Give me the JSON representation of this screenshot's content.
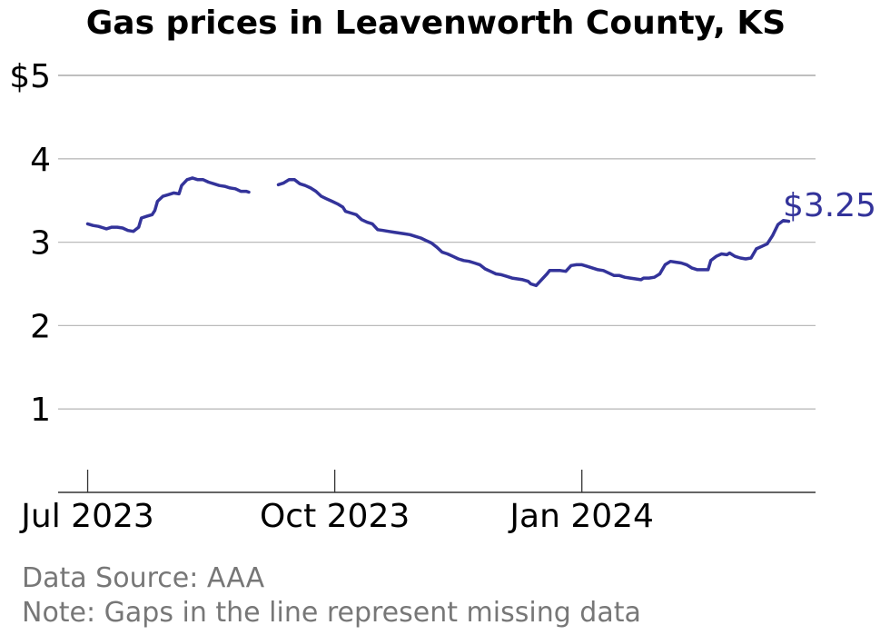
{
  "chart_data": {
    "type": "line",
    "title": "Gas prices in Leavenworth County, KS",
    "y_tick_labels": [
      "$5",
      "4",
      "3",
      "2",
      "1"
    ],
    "y_ticks": [
      5,
      4,
      3,
      2,
      1
    ],
    "ylim": [
      0,
      5
    ],
    "x_ticks": [
      {
        "label": "Jul 2023",
        "date": "2023-07-01"
      },
      {
        "label": "Oct 2023",
        "date": "2023-10-01"
      },
      {
        "label": "Jan 2024",
        "date": "2024-01-01"
      }
    ],
    "xlim": [
      "2023-06-20",
      "2024-03-28"
    ],
    "grid": true,
    "line_color": "#33339a",
    "end_label": "$3.25",
    "source": "Data Source: AAA",
    "note": "Note: Gaps in the line represent missing data",
    "series": [
      {
        "segments": [
          [
            [
              "2023-07-01",
              3.22
            ],
            [
              "2023-07-03",
              3.2
            ],
            [
              "2023-07-05",
              3.19
            ],
            [
              "2023-07-07",
              3.17
            ],
            [
              "2023-07-08",
              3.16
            ],
            [
              "2023-07-10",
              3.18
            ],
            [
              "2023-07-12",
              3.18
            ],
            [
              "2023-07-14",
              3.17
            ],
            [
              "2023-07-16",
              3.14
            ],
            [
              "2023-07-18",
              3.13
            ],
            [
              "2023-07-20",
              3.18
            ],
            [
              "2023-07-21",
              3.29
            ],
            [
              "2023-07-23",
              3.31
            ],
            [
              "2023-07-25",
              3.33
            ],
            [
              "2023-07-26",
              3.38
            ],
            [
              "2023-07-27",
              3.49
            ],
            [
              "2023-07-29",
              3.55
            ],
            [
              "2023-07-31",
              3.57
            ],
            [
              "2023-08-02",
              3.59
            ],
            [
              "2023-08-04",
              3.58
            ],
            [
              "2023-08-05",
              3.68
            ],
            [
              "2023-08-07",
              3.75
            ],
            [
              "2023-08-09",
              3.77
            ],
            [
              "2023-08-11",
              3.75
            ],
            [
              "2023-08-13",
              3.75
            ],
            [
              "2023-08-15",
              3.72
            ],
            [
              "2023-08-17",
              3.7
            ],
            [
              "2023-08-19",
              3.68
            ],
            [
              "2023-08-21",
              3.67
            ],
            [
              "2023-08-23",
              3.65
            ],
            [
              "2023-08-25",
              3.64
            ],
            [
              "2023-08-27",
              3.61
            ],
            [
              "2023-08-29",
              3.61
            ],
            [
              "2023-08-30",
              3.6
            ]
          ],
          [
            [
              "2023-09-10",
              3.69
            ],
            [
              "2023-09-12",
              3.71
            ],
            [
              "2023-09-14",
              3.75
            ],
            [
              "2023-09-16",
              3.75
            ],
            [
              "2023-09-18",
              3.7
            ],
            [
              "2023-09-20",
              3.68
            ],
            [
              "2023-09-22",
              3.65
            ],
            [
              "2023-09-24",
              3.61
            ],
            [
              "2023-09-26",
              3.55
            ],
            [
              "2023-09-28",
              3.52
            ],
            [
              "2023-09-30",
              3.49
            ],
            [
              "2023-10-02",
              3.46
            ],
            [
              "2023-10-04",
              3.42
            ],
            [
              "2023-10-05",
              3.37
            ],
            [
              "2023-10-07",
              3.35
            ],
            [
              "2023-10-09",
              3.33
            ],
            [
              "2023-10-11",
              3.27
            ],
            [
              "2023-10-13",
              3.24
            ],
            [
              "2023-10-15",
              3.22
            ],
            [
              "2023-10-17",
              3.15
            ],
            [
              "2023-10-19",
              3.14
            ],
            [
              "2023-10-21",
              3.13
            ],
            [
              "2023-10-23",
              3.12
            ],
            [
              "2023-10-25",
              3.11
            ],
            [
              "2023-10-27",
              3.1
            ],
            [
              "2023-10-29",
              3.09
            ],
            [
              "2023-10-31",
              3.07
            ],
            [
              "2023-11-02",
              3.05
            ],
            [
              "2023-11-04",
              3.02
            ],
            [
              "2023-11-06",
              2.99
            ],
            [
              "2023-11-08",
              2.94
            ],
            [
              "2023-11-10",
              2.88
            ],
            [
              "2023-11-12",
              2.86
            ],
            [
              "2023-11-14",
              2.83
            ],
            [
              "2023-11-16",
              2.8
            ],
            [
              "2023-11-18",
              2.78
            ],
            [
              "2023-11-20",
              2.77
            ],
            [
              "2023-11-22",
              2.75
            ],
            [
              "2023-11-24",
              2.73
            ],
            [
              "2023-11-26",
              2.68
            ],
            [
              "2023-11-28",
              2.65
            ],
            [
              "2023-11-30",
              2.62
            ],
            [
              "2023-12-02",
              2.61
            ],
            [
              "2023-12-04",
              2.59
            ],
            [
              "2023-12-06",
              2.57
            ],
            [
              "2023-12-08",
              2.56
            ],
            [
              "2023-12-10",
              2.55
            ],
            [
              "2023-12-12",
              2.53
            ],
            [
              "2023-12-13",
              2.5
            ],
            [
              "2023-12-15",
              2.48
            ],
            [
              "2023-12-17",
              2.55
            ],
            [
              "2023-12-19",
              2.62
            ],
            [
              "2023-12-20",
              2.66
            ],
            [
              "2023-12-22",
              2.66
            ],
            [
              "2023-12-24",
              2.66
            ],
            [
              "2023-12-26",
              2.65
            ],
            [
              "2023-12-28",
              2.72
            ],
            [
              "2023-12-30",
              2.73
            ],
            [
              "2024-01-01",
              2.73
            ],
            [
              "2024-01-03",
              2.71
            ],
            [
              "2024-01-05",
              2.69
            ],
            [
              "2024-01-07",
              2.67
            ],
            [
              "2024-01-09",
              2.66
            ],
            [
              "2024-01-11",
              2.63
            ],
            [
              "2024-01-13",
              2.6
            ],
            [
              "2024-01-15",
              2.6
            ],
            [
              "2024-01-17",
              2.58
            ],
            [
              "2024-01-19",
              2.57
            ],
            [
              "2024-01-21",
              2.56
            ],
            [
              "2024-01-23",
              2.55
            ],
            [
              "2024-01-24",
              2.57
            ],
            [
              "2024-01-26",
              2.57
            ],
            [
              "2024-01-28",
              2.58
            ],
            [
              "2024-01-30",
              2.62
            ],
            [
              "2024-02-01",
              2.73
            ],
            [
              "2024-02-03",
              2.77
            ],
            [
              "2024-02-05",
              2.76
            ],
            [
              "2024-02-07",
              2.75
            ],
            [
              "2024-02-09",
              2.73
            ],
            [
              "2024-02-11",
              2.69
            ],
            [
              "2024-02-13",
              2.67
            ],
            [
              "2024-02-15",
              2.67
            ],
            [
              "2024-02-17",
              2.67
            ],
            [
              "2024-02-18",
              2.78
            ],
            [
              "2024-02-20",
              2.83
            ],
            [
              "2024-02-22",
              2.86
            ],
            [
              "2024-02-24",
              2.85
            ],
            [
              "2024-02-25",
              2.87
            ],
            [
              "2024-02-27",
              2.83
            ],
            [
              "2024-02-29",
              2.81
            ],
            [
              "2024-03-02",
              2.8
            ],
            [
              "2024-03-04",
              2.81
            ],
            [
              "2024-03-06",
              2.92
            ],
            [
              "2024-03-08",
              2.95
            ],
            [
              "2024-03-10",
              2.98
            ],
            [
              "2024-03-12",
              3.08
            ],
            [
              "2024-03-14",
              3.21
            ],
            [
              "2024-03-16",
              3.26
            ],
            [
              "2024-03-18",
              3.25
            ]
          ]
        ]
      }
    ]
  }
}
